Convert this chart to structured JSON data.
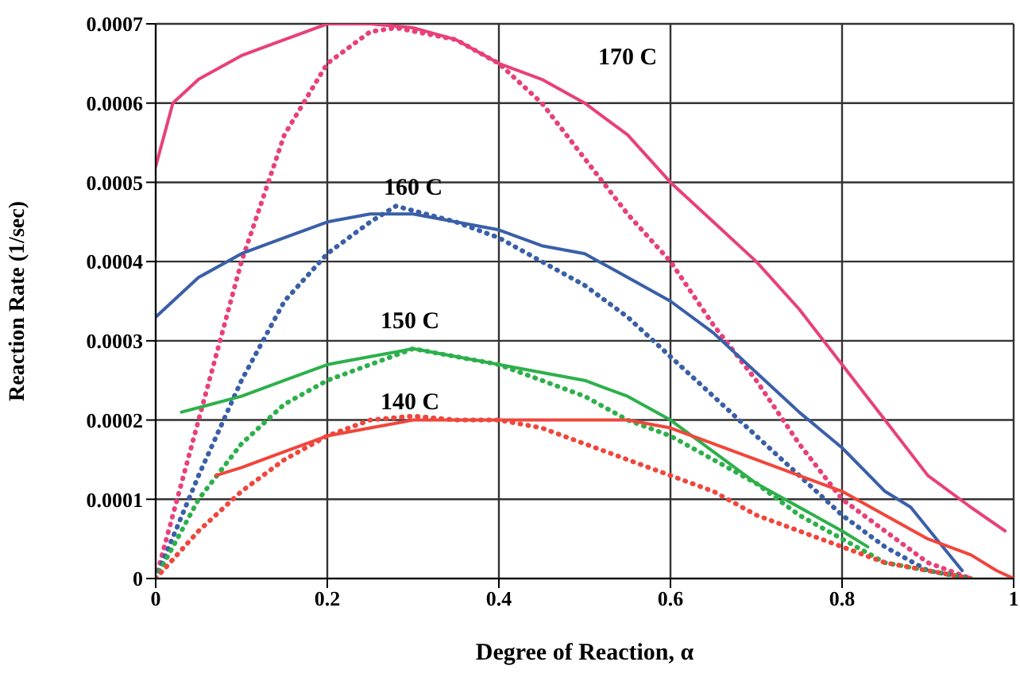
{
  "chart_data": {
    "type": "line",
    "xlabel": "Degree of Reaction, α",
    "ylabel": "Reaction Rate (1/sec)",
    "xlim": [
      0,
      1
    ],
    "xticks": [
      0,
      0.2,
      0.4,
      0.6,
      0.8,
      1
    ],
    "ylim": [
      0,
      0.0007
    ],
    "yticks": [
      0,
      0.0001,
      0.0002,
      0.0003,
      0.0004,
      0.0005,
      0.0006,
      0.0007
    ],
    "grid": true,
    "marker": "none",
    "series": [
      {
        "color": "#e8407a",
        "line_style": "solid",
        "x": [
          0,
          0.02,
          0.05,
          0.1,
          0.15,
          0.2,
          0.25,
          0.3,
          0.35,
          0.4,
          0.45,
          0.5,
          0.55,
          0.6,
          0.65,
          0.7,
          0.75,
          0.8,
          0.85,
          0.9,
          0.95,
          0.99
        ],
        "values": [
          0.00052,
          0.0006,
          0.00063,
          0.00066,
          0.00068,
          0.0007,
          0.0007,
          0.000695,
          0.00068,
          0.00065,
          0.00063,
          0.0006,
          0.00056,
          0.0005,
          0.00045,
          0.0004,
          0.00034,
          0.00027,
          0.0002,
          0.00013,
          9e-05,
          6e-05
        ]
      },
      {
        "color": "#e8407a",
        "line_style": "dotted",
        "x": [
          0,
          0.05,
          0.1,
          0.15,
          0.2,
          0.25,
          0.28,
          0.35,
          0.4,
          0.45,
          0.5,
          0.55,
          0.6,
          0.65,
          0.7,
          0.75,
          0.8,
          0.85,
          0.9,
          0.95
        ],
        "values": [
          0,
          0.0002,
          0.0004,
          0.00056,
          0.00065,
          0.00069,
          0.000695,
          0.00068,
          0.00065,
          0.0006,
          0.00053,
          0.00046,
          0.0004,
          0.00032,
          0.00025,
          0.00017,
          0.0001,
          6e-05,
          2e-05,
          0
        ]
      },
      {
        "color": "#3a5fa8",
        "line_style": "solid",
        "x": [
          0,
          0.05,
          0.1,
          0.15,
          0.2,
          0.25,
          0.3,
          0.35,
          0.4,
          0.45,
          0.5,
          0.55,
          0.6,
          0.65,
          0.7,
          0.75,
          0.8,
          0.85,
          0.88,
          0.91,
          0.94
        ],
        "values": [
          0.00033,
          0.00038,
          0.00041,
          0.00043,
          0.00045,
          0.00046,
          0.00046,
          0.00045,
          0.00044,
          0.00042,
          0.00041,
          0.00038,
          0.00035,
          0.00031,
          0.00026,
          0.00021,
          0.000165,
          0.00011,
          9e-05,
          5e-05,
          1e-05
        ]
      },
      {
        "color": "#3a5fa8",
        "line_style": "dotted",
        "x": [
          0,
          0.05,
          0.1,
          0.15,
          0.2,
          0.25,
          0.28,
          0.35,
          0.4,
          0.45,
          0.5,
          0.55,
          0.6,
          0.65,
          0.7,
          0.75,
          0.8,
          0.85,
          0.9,
          0.95
        ],
        "values": [
          0,
          0.00013,
          0.00025,
          0.00035,
          0.00041,
          0.00045,
          0.00047,
          0.00045,
          0.00043,
          0.0004,
          0.00037,
          0.00033,
          0.00028,
          0.00023,
          0.00018,
          0.00013,
          8e-05,
          4e-05,
          1e-05,
          0
        ]
      },
      {
        "color": "#2db04b",
        "line_style": "solid",
        "x": [
          0.03,
          0.1,
          0.15,
          0.2,
          0.25,
          0.3,
          0.35,
          0.4,
          0.45,
          0.5,
          0.55,
          0.6,
          0.65,
          0.7,
          0.75,
          0.8,
          0.83
        ],
        "values": [
          0.00021,
          0.00023,
          0.00025,
          0.00027,
          0.00028,
          0.00029,
          0.00028,
          0.00027,
          0.00026,
          0.00025,
          0.00023,
          0.0002,
          0.00016,
          0.00012,
          9e-05,
          6e-05,
          4e-05
        ]
      },
      {
        "color": "#2db04b",
        "line_style": "dotted",
        "x": [
          0,
          0.05,
          0.1,
          0.15,
          0.2,
          0.25,
          0.3,
          0.35,
          0.4,
          0.45,
          0.5,
          0.55,
          0.6,
          0.65,
          0.7,
          0.75,
          0.8,
          0.85,
          0.9,
          0.95
        ],
        "values": [
          0,
          0.0001,
          0.00017,
          0.00022,
          0.00025,
          0.00027,
          0.00029,
          0.00028,
          0.00027,
          0.00025,
          0.00023,
          0.0002,
          0.00018,
          0.00015,
          0.00012,
          8e-05,
          5e-05,
          2e-05,
          1e-05,
          0
        ]
      },
      {
        "color": "#f0463c",
        "line_style": "solid",
        "x": [
          0.07,
          0.1,
          0.15,
          0.2,
          0.25,
          0.3,
          0.4,
          0.5,
          0.55,
          0.6,
          0.65,
          0.7,
          0.75,
          0.8,
          0.85,
          0.9,
          0.95,
          0.98,
          1
        ],
        "values": [
          0.00013,
          0.00014,
          0.00016,
          0.00018,
          0.00019,
          0.0002,
          0.0002,
          0.0002,
          0.0002,
          0.00019,
          0.00017,
          0.00015,
          0.00013,
          0.00011,
          8e-05,
          5e-05,
          3e-05,
          1e-05,
          0
        ]
      },
      {
        "color": "#f0463c",
        "line_style": "dotted",
        "x": [
          0,
          0.05,
          0.1,
          0.15,
          0.2,
          0.25,
          0.3,
          0.35,
          0.4,
          0.45,
          0.5,
          0.55,
          0.6,
          0.65,
          0.7,
          0.75,
          0.8,
          0.85,
          0.9,
          0.95
        ],
        "values": [
          0,
          6e-05,
          0.00011,
          0.00015,
          0.00018,
          0.0002,
          0.000205,
          0.0002,
          0.0002,
          0.00019,
          0.00017,
          0.00015,
          0.00013,
          0.00011,
          8e-05,
          6e-05,
          4e-05,
          2e-05,
          1e-05,
          0
        ]
      }
    ],
    "annotations": [
      "170 C",
      "160 C",
      "150 C",
      "140 C"
    ]
  }
}
